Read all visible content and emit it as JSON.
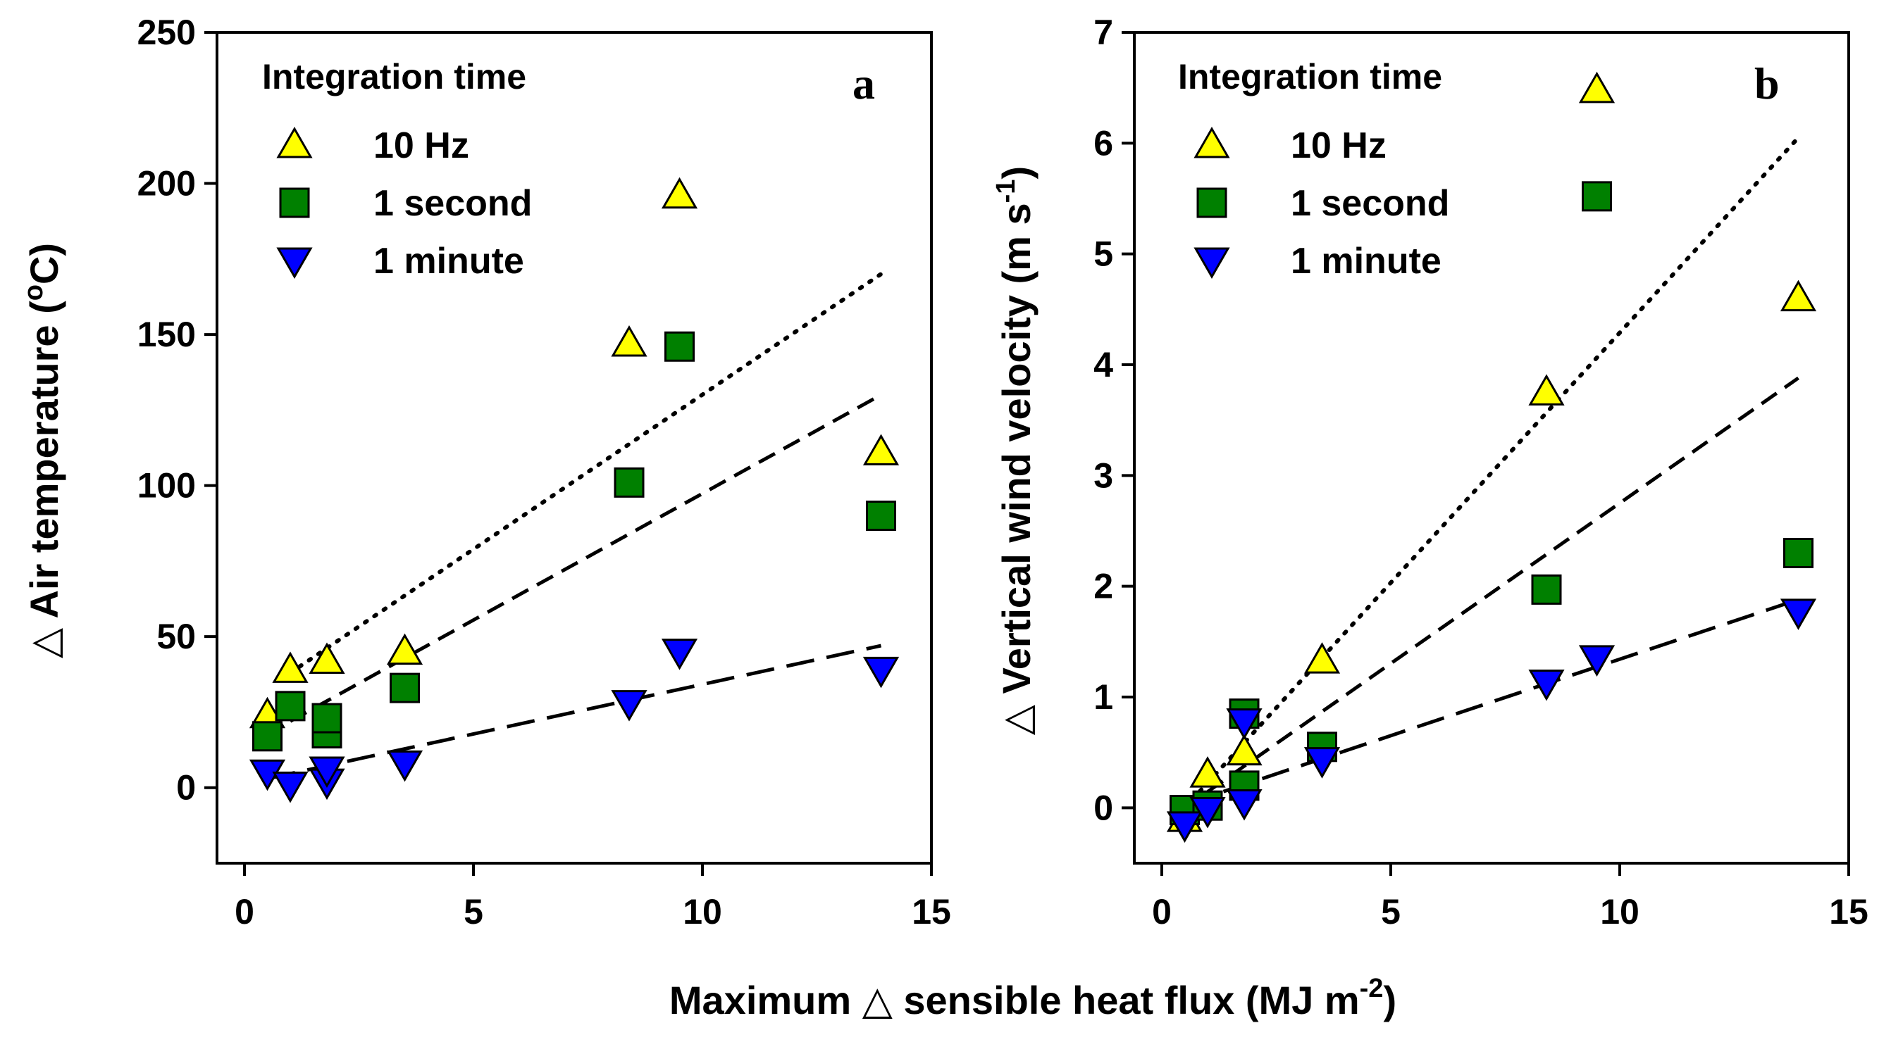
{
  "figure": {
    "shared_xlabel": "Maximum △ sensible heat flux (MJ m",
    "shared_xlabel_sup": "-2",
    "shared_xlabel_end": ")"
  },
  "legend": {
    "title": "Integration time",
    "entries": [
      {
        "series": "10 Hz",
        "marker": "triangle-up",
        "color": "#FFFF00"
      },
      {
        "series": "1 second",
        "marker": "square",
        "color": "#008000"
      },
      {
        "series": "1 minute",
        "marker": "triangle-down",
        "color": "#0000FF"
      }
    ]
  },
  "chart_data": [
    {
      "type": "scatter",
      "panel": "a",
      "title": "",
      "xlabel": "Maximum △ sensible heat flux (MJ m-2)",
      "ylabel_main": "△ Air temperature (",
      "ylabel_sup": "o",
      "ylabel_end": "C)",
      "xlim": [
        -0.6,
        15
      ],
      "ylim": [
        -25,
        250
      ],
      "xticks": [
        0,
        5,
        10,
        15
      ],
      "yticks": [
        0,
        50,
        100,
        150,
        200,
        250
      ],
      "legend_position": "top-left",
      "series": [
        {
          "name": "10 Hz",
          "marker": "triangle-up",
          "color": "#FFFF00",
          "x": [
            0.5,
            1.0,
            1.8,
            3.5,
            8.4,
            9.5,
            13.9
          ],
          "y": [
            24,
            39,
            42,
            45,
            147,
            196,
            111
          ]
        },
        {
          "name": "1 second",
          "marker": "square",
          "color": "#008000",
          "x": [
            0.5,
            1.0,
            1.8,
            1.8,
            3.5,
            8.4,
            9.5,
            13.9
          ],
          "y": [
            17,
            27,
            18,
            23,
            33,
            101,
            146,
            90
          ]
        },
        {
          "name": "1 minute",
          "marker": "triangle-down",
          "color": "#0000FF",
          "x": [
            0.5,
            1.0,
            1.8,
            1.8,
            3.5,
            8.4,
            9.5,
            13.9
          ],
          "y": [
            5,
            1,
            2,
            6,
            8,
            28,
            45,
            39
          ]
        }
      ],
      "fits": [
        {
          "series": "10 Hz",
          "style": "dotted",
          "x": [
            1.0,
            13.9
          ],
          "y": [
            38,
            170
          ]
        },
        {
          "series": "1 second",
          "style": "dashed",
          "x": [
            1.0,
            13.9
          ],
          "y": [
            22,
            130
          ]
        },
        {
          "series": "1 minute",
          "style": "long-dashed",
          "x": [
            0.5,
            13.9
          ],
          "y": [
            3,
            47
          ]
        }
      ]
    },
    {
      "type": "scatter",
      "panel": "b",
      "title": "",
      "xlabel": "Maximum △ sensible heat flux (MJ m-2)",
      "ylabel_main": "△ Vertical wind velocity (m s",
      "ylabel_sup": "-1",
      "ylabel_end": ")",
      "xlim": [
        -0.6,
        15
      ],
      "ylim": [
        -0.5,
        7
      ],
      "xticks": [
        0,
        5,
        10,
        15
      ],
      "yticks": [
        0,
        1,
        2,
        3,
        4,
        5,
        6,
        7
      ],
      "legend_position": "top-left",
      "series": [
        {
          "name": "10 Hz",
          "marker": "triangle-up",
          "color": "#FFFF00",
          "x": [
            0.5,
            1.0,
            1.8,
            3.5,
            8.4,
            9.5,
            13.9
          ],
          "y": [
            -0.1,
            0.3,
            0.5,
            1.33,
            3.75,
            6.48,
            4.6
          ]
        },
        {
          "name": "1 second",
          "marker": "square",
          "color": "#008000",
          "x": [
            0.5,
            1.0,
            1.8,
            1.8,
            3.5,
            8.4,
            9.5,
            13.9
          ],
          "y": [
            -0.02,
            0.02,
            0.2,
            0.85,
            0.55,
            1.97,
            5.52,
            2.3
          ]
        },
        {
          "name": "1 minute",
          "marker": "triangle-down",
          "color": "#0000FF",
          "x": [
            0.5,
            1.0,
            1.8,
            1.8,
            3.5,
            8.4,
            9.5,
            13.9
          ],
          "y": [
            -0.15,
            -0.02,
            0.05,
            0.78,
            0.43,
            1.13,
            1.35,
            1.77
          ]
        }
      ],
      "fits": [
        {
          "series": "10 Hz",
          "style": "dotted",
          "x": [
            0.5,
            13.9
          ],
          "y": [
            0.0,
            6.05
          ]
        },
        {
          "series": "1 second",
          "style": "dashed",
          "x": [
            0.5,
            13.9
          ],
          "y": [
            0.0,
            3.88
          ]
        },
        {
          "series": "1 minute",
          "style": "long-dashed",
          "x": [
            0.5,
            13.9
          ],
          "y": [
            0.03,
            1.88
          ]
        }
      ]
    }
  ]
}
